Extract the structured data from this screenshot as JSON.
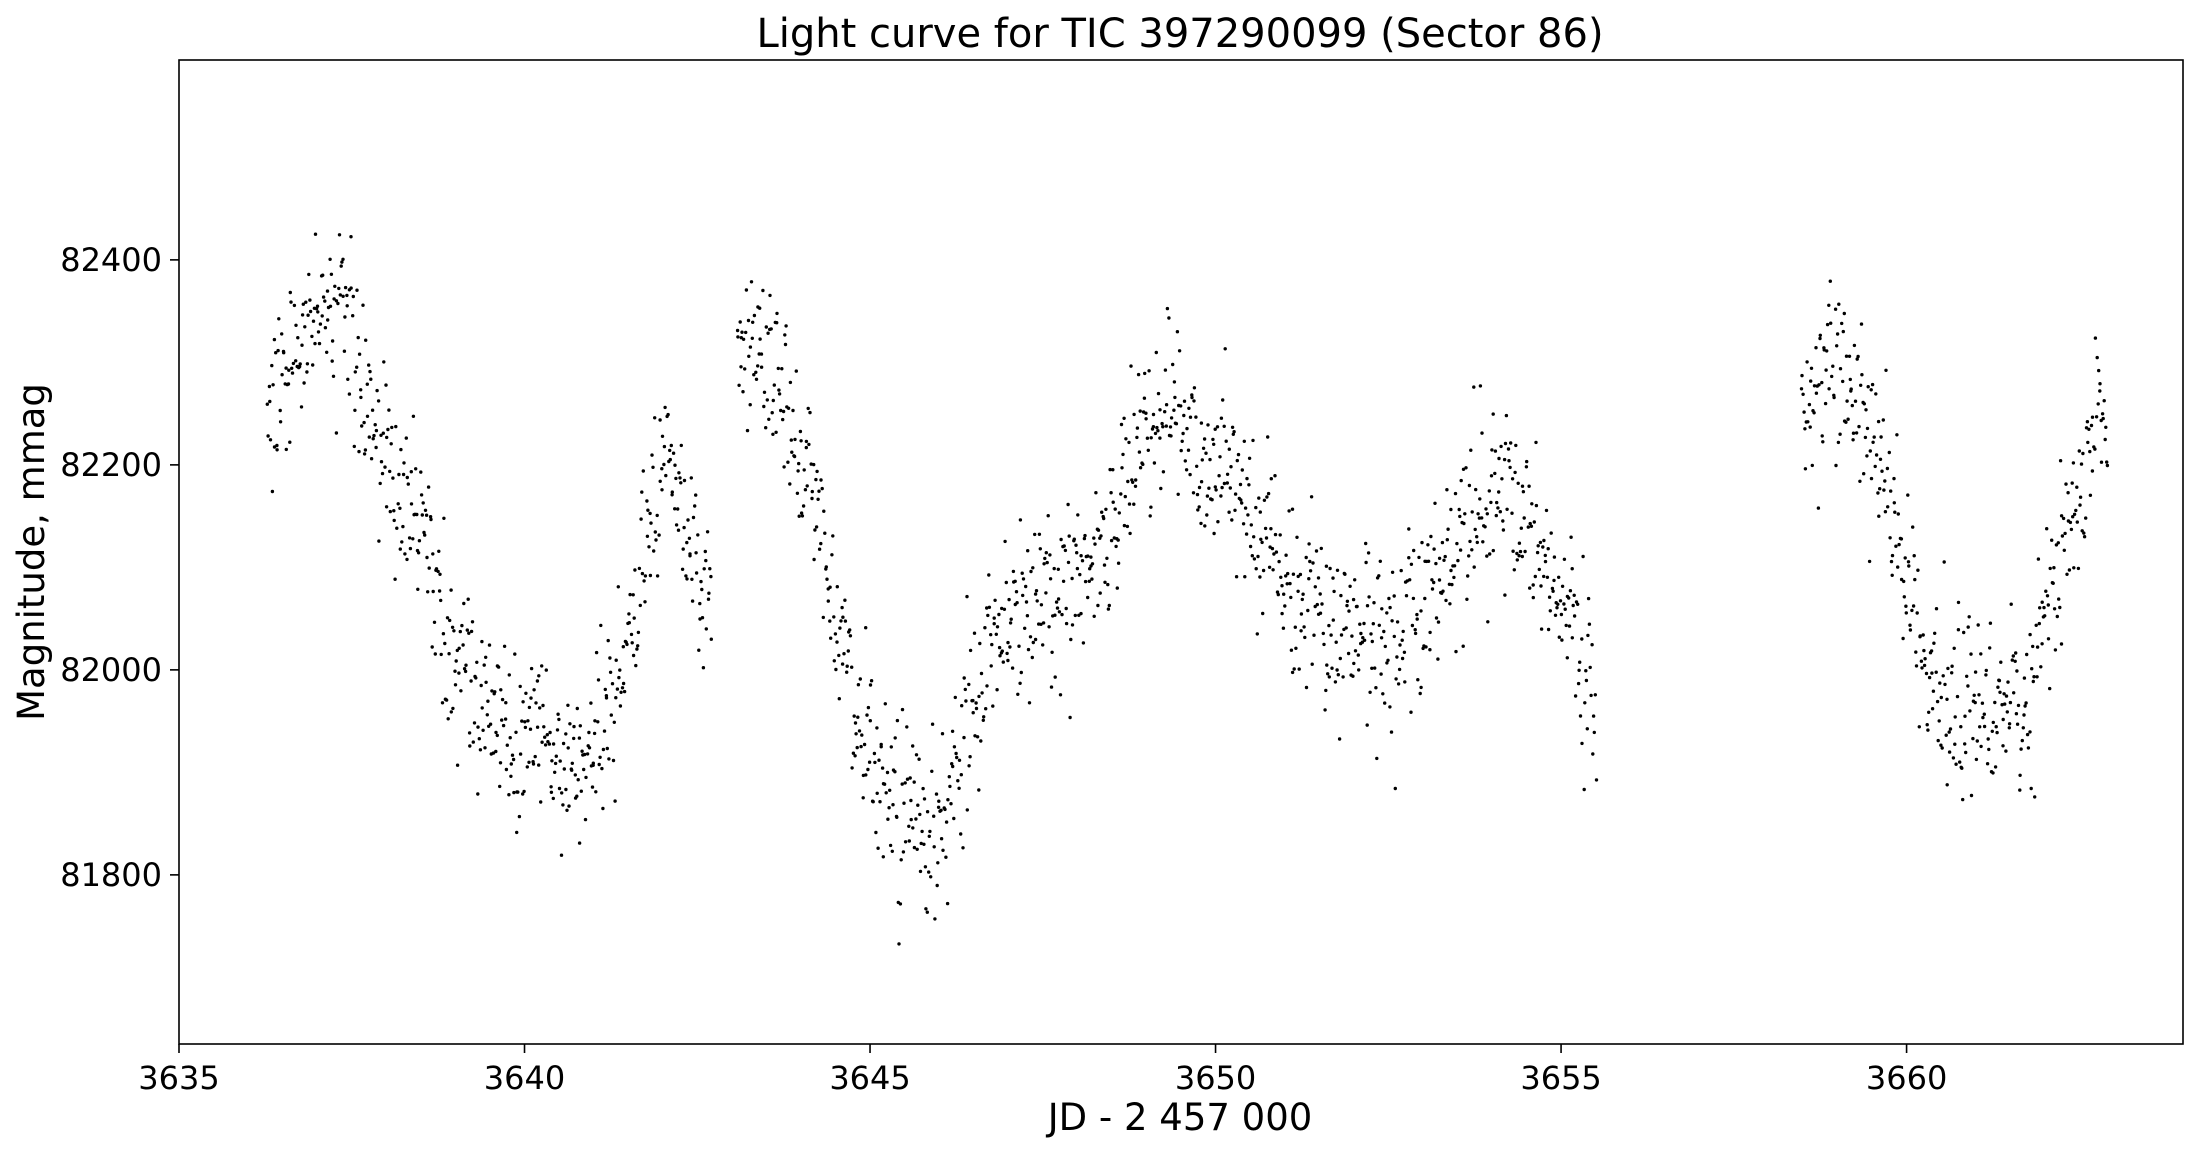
{
  "chart_data": {
    "type": "scatter",
    "title": "Light curve for TIC 397290099 (Sector 86)",
    "xlabel": "JD - 2 457 000",
    "ylabel": "Magnitude, mmag",
    "xlim": [
      3635,
      3664
    ],
    "ylim": [
      81635,
      82595
    ],
    "y_inverted": false,
    "grid": false,
    "legend": "none",
    "marker_color": "#000000",
    "x_ticks": [
      3635,
      3640,
      3645,
      3650,
      3655,
      3660
    ],
    "x_tick_labels": [
      "3635",
      "3640",
      "3645",
      "3650",
      "3655",
      "3660"
    ],
    "y_ticks": [
      81800,
      82000,
      82200,
      82400
    ],
    "y_tick_labels": [
      "81800",
      "82000",
      "82200",
      "82400"
    ],
    "series": [
      {
        "x": [
          3636.4,
          3636.6,
          3636.8,
          3637.0,
          3637.2,
          3637.4,
          3637.6,
          3637.8,
          3638.0,
          3638.2,
          3638.4,
          3638.6,
          3638.8,
          3639.0,
          3639.2,
          3639.4,
          3639.6,
          3639.8,
          3640.0,
          3640.2,
          3640.4,
          3640.6,
          3640.8,
          3641.0,
          3641.2,
          3641.4,
          3641.6,
          3641.8,
          3642.0,
          3642.2,
          3642.4,
          3642.6,
          3643.2,
          3643.4,
          3643.6,
          3643.8,
          3644.0,
          3644.2,
          3644.4,
          3644.6,
          3644.8,
          3645.0,
          3645.2,
          3645.4,
          3645.6,
          3645.8,
          3646.0,
          3646.2,
          3646.4,
          3646.6,
          3646.8,
          3647.0,
          3647.2,
          3647.4,
          3647.6,
          3647.8,
          3648.0,
          3648.2,
          3648.4,
          3648.6,
          3648.8,
          3649.0,
          3649.2,
          3649.4,
          3649.8,
          3650.0,
          3650.2,
          3650.4,
          3650.6,
          3650.8,
          3651.0,
          3651.2,
          3651.4,
          3651.6,
          3652.0,
          3652.2,
          3652.4,
          3652.6,
          3652.8,
          3653.0,
          3653.2,
          3653.4,
          3653.6,
          3653.8,
          3654.0,
          3654.2,
          3654.4,
          3654.6,
          3654.8,
          3655.0,
          3655.2,
          3655.4,
          3658.6,
          3658.8,
          3659.0,
          3659.2,
          3659.4,
          3659.6,
          3659.8,
          3660.0,
          3660.2,
          3660.4,
          3660.6,
          3660.8,
          3661.0,
          3661.2,
          3661.4,
          3661.6,
          3661.8,
          3662.0,
          3662.2,
          3662.4,
          3662.6,
          3662.8
        ],
        "y": [
          82250,
          82300,
          82320,
          82340,
          82350,
          82340,
          82290,
          82240,
          82200,
          82160,
          82130,
          82100,
          82060,
          82020,
          81980,
          81960,
          81945,
          81935,
          81930,
          81925,
          81915,
          81900,
          81905,
          81925,
          81960,
          82000,
          82050,
          82150,
          82200,
          82180,
          82120,
          82080,
          82320,
          82300,
          82280,
          82260,
          82220,
          82160,
          82080,
          82020,
          81970,
          81920,
          81880,
          81860,
          81850,
          81830,
          81840,
          81880,
          81940,
          82000,
          82030,
          82050,
          82060,
          82070,
          82070,
          82060,
          82070,
          82090,
          82120,
          82170,
          82200,
          82230,
          82250,
          82260,
          82200,
          82200,
          82190,
          82160,
          82130,
          82110,
          82090,
          82080,
          82070,
          82040,
          82050,
          82030,
          82020,
          82030,
          82050,
          82070,
          82090,
          82110,
          82130,
          82160,
          82170,
          82170,
          82150,
          82120,
          82100,
          82070,
          82030,
          81990,
          82250,
          82310,
          82300,
          82270,
          82240,
          82200,
          82150,
          82080,
          82020,
          81990,
          81970,
          81960,
          81955,
          81960,
          81960,
          81970,
          82000,
          82050,
          82100,
          82140,
          82190,
          82230
        ]
      }
    ]
  }
}
